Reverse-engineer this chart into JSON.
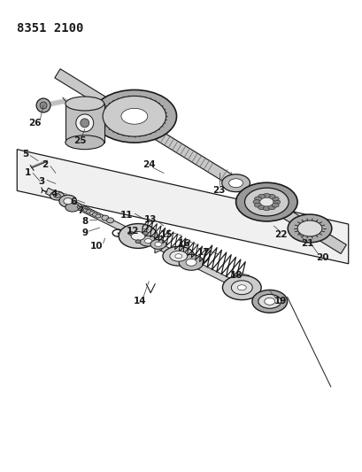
{
  "title": "8351 2100",
  "bg_color": "#ffffff",
  "lc": "#1a1a1a",
  "figsize": [
    4.1,
    5.33
  ],
  "dpi": 100,
  "title_fs": 10,
  "label_fs": 7.5
}
